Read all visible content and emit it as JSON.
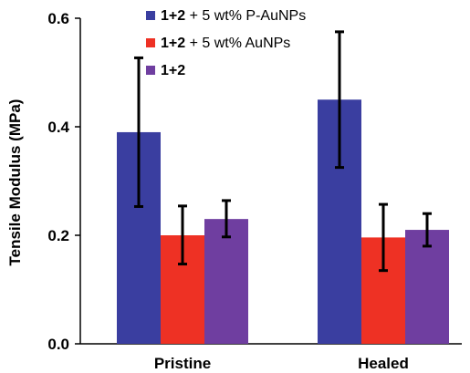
{
  "chart_data": {
    "type": "bar",
    "categories": [
      "Pristine",
      "Healed"
    ],
    "ylabel": "Tensile Modulus (MPa)",
    "xlabel": "",
    "ylim": [
      0.0,
      0.6
    ],
    "yticks": [
      "0.0",
      "0.2",
      "0.4",
      "0.6"
    ],
    "ytick_values": [
      0.0,
      0.2,
      0.4,
      0.6
    ],
    "grid": false,
    "legend_position": "top-right",
    "series": [
      {
        "name": "1+2 + 5 wt% P-AuNPs",
        "name_bold": "1+2",
        "name_rest": " + 5 wt% P-AuNPs",
        "color": "#3a3ea0",
        "values": [
          0.39,
          0.45
        ],
        "error": [
          [
            0.253,
            0.527
          ],
          [
            0.325,
            0.575
          ]
        ]
      },
      {
        "name": "1+2 + 5 wt% AuNPs",
        "name_bold": "1+2",
        "name_rest": " + 5 wt% AuNPs",
        "color": "#ee3124",
        "values": [
          0.2,
          0.196
        ],
        "error": [
          [
            0.147,
            0.254
          ],
          [
            0.135,
            0.257
          ]
        ]
      },
      {
        "name": "1+2",
        "name_bold": "1+2",
        "name_rest": "",
        "color": "#6f3ea0",
        "values": [
          0.23,
          0.21
        ],
        "error": [
          [
            0.197,
            0.264
          ],
          [
            0.18,
            0.24
          ]
        ]
      }
    ]
  }
}
